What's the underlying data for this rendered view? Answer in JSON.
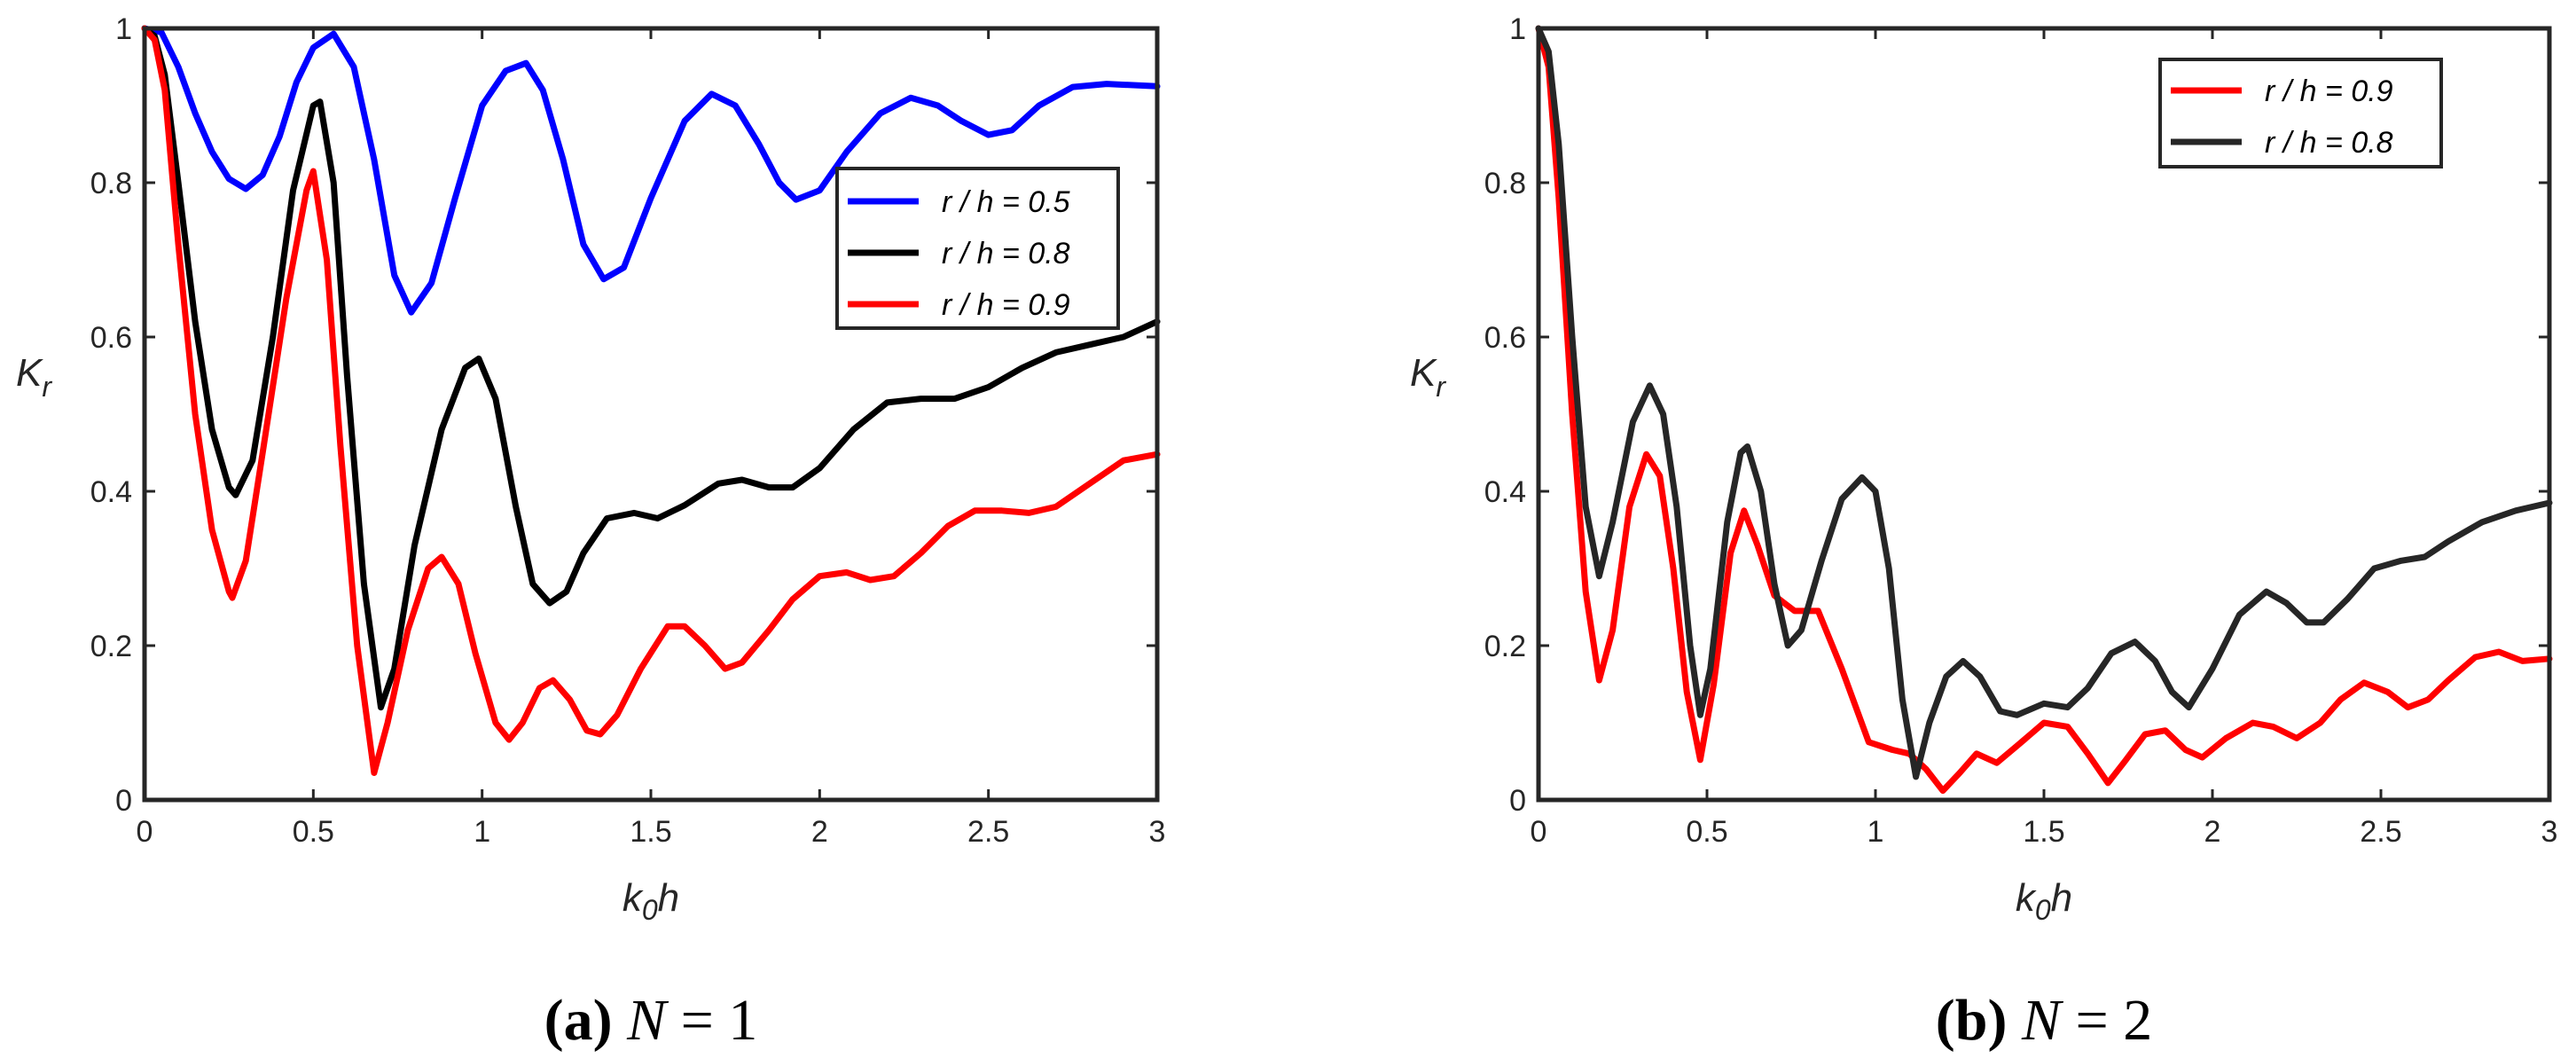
{
  "chart_data": [
    {
      "type": "line",
      "panel": "a",
      "caption_label": "(a)",
      "caption_var": "N",
      "caption_value": "= 1",
      "xlabel": "k",
      "xlabel_sub": "0",
      "xlabel_tail": "h",
      "ylabel": "K",
      "ylabel_sub": "r",
      "xlim": [
        0,
        3
      ],
      "ylim": [
        0,
        1
      ],
      "xticks": [
        "0",
        "0.5",
        "1",
        "1.5",
        "2",
        "2.5",
        "3"
      ],
      "yticks": [
        "0",
        "0.2",
        "0.4",
        "0.6",
        "0.8",
        "1"
      ],
      "legend_position": "right",
      "series": [
        {
          "name": "r / h = 0.5",
          "color": "#0000ff",
          "points": [
            [
              0,
              1
            ],
            [
              0.05,
              0.995
            ],
            [
              0.1,
              0.95
            ],
            [
              0.15,
              0.89
            ],
            [
              0.2,
              0.84
            ],
            [
              0.25,
              0.805
            ],
            [
              0.3,
              0.792
            ],
            [
              0.35,
              0.81
            ],
            [
              0.4,
              0.86
            ],
            [
              0.45,
              0.93
            ],
            [
              0.5,
              0.975
            ],
            [
              0.56,
              0.993
            ],
            [
              0.62,
              0.95
            ],
            [
              0.68,
              0.83
            ],
            [
              0.74,
              0.68
            ],
            [
              0.79,
              0.632
            ],
            [
              0.85,
              0.67
            ],
            [
              0.92,
              0.78
            ],
            [
              1.0,
              0.9
            ],
            [
              1.07,
              0.945
            ],
            [
              1.13,
              0.955
            ],
            [
              1.18,
              0.92
            ],
            [
              1.24,
              0.83
            ],
            [
              1.3,
              0.72
            ],
            [
              1.36,
              0.675
            ],
            [
              1.42,
              0.69
            ],
            [
              1.5,
              0.78
            ],
            [
              1.6,
              0.88
            ],
            [
              1.68,
              0.915
            ],
            [
              1.75,
              0.9
            ],
            [
              1.82,
              0.85
            ],
            [
              1.88,
              0.8
            ],
            [
              1.93,
              0.778
            ],
            [
              2.0,
              0.79
            ],
            [
              2.08,
              0.84
            ],
            [
              2.18,
              0.89
            ],
            [
              2.27,
              0.91
            ],
            [
              2.35,
              0.9
            ],
            [
              2.42,
              0.88
            ],
            [
              2.5,
              0.862
            ],
            [
              2.57,
              0.868
            ],
            [
              2.65,
              0.9
            ],
            [
              2.75,
              0.924
            ],
            [
              2.85,
              0.928
            ],
            [
              3.0,
              0.925
            ]
          ]
        },
        {
          "name": "r / h = 0.8",
          "color": "#000000",
          "points": [
            [
              0,
              1
            ],
            [
              0.03,
              0.99
            ],
            [
              0.06,
              0.94
            ],
            [
              0.1,
              0.8
            ],
            [
              0.15,
              0.62
            ],
            [
              0.2,
              0.48
            ],
            [
              0.25,
              0.405
            ],
            [
              0.27,
              0.395
            ],
            [
              0.32,
              0.44
            ],
            [
              0.38,
              0.6
            ],
            [
              0.44,
              0.79
            ],
            [
              0.5,
              0.9
            ],
            [
              0.52,
              0.905
            ],
            [
              0.56,
              0.8
            ],
            [
              0.6,
              0.55
            ],
            [
              0.65,
              0.28
            ],
            [
              0.7,
              0.12
            ],
            [
              0.74,
              0.17
            ],
            [
              0.8,
              0.33
            ],
            [
              0.88,
              0.48
            ],
            [
              0.95,
              0.56
            ],
            [
              0.99,
              0.572
            ],
            [
              1.04,
              0.52
            ],
            [
              1.1,
              0.38
            ],
            [
              1.15,
              0.28
            ],
            [
              1.2,
              0.255
            ],
            [
              1.25,
              0.27
            ],
            [
              1.3,
              0.32
            ],
            [
              1.37,
              0.365
            ],
            [
              1.45,
              0.372
            ],
            [
              1.52,
              0.365
            ],
            [
              1.6,
              0.382
            ],
            [
              1.7,
              0.41
            ],
            [
              1.77,
              0.415
            ],
            [
              1.85,
              0.405
            ],
            [
              1.92,
              0.405
            ],
            [
              2.0,
              0.43
            ],
            [
              2.1,
              0.48
            ],
            [
              2.2,
              0.515
            ],
            [
              2.3,
              0.52
            ],
            [
              2.4,
              0.52
            ],
            [
              2.5,
              0.535
            ],
            [
              2.6,
              0.56
            ],
            [
              2.7,
              0.58
            ],
            [
              2.8,
              0.59
            ],
            [
              2.9,
              0.6
            ],
            [
              3.0,
              0.62
            ]
          ]
        },
        {
          "name": "r / h = 0.9",
          "color": "#ff0000",
          "points": [
            [
              0,
              1
            ],
            [
              0.03,
              0.985
            ],
            [
              0.06,
              0.92
            ],
            [
              0.1,
              0.72
            ],
            [
              0.15,
              0.5
            ],
            [
              0.2,
              0.35
            ],
            [
              0.25,
              0.27
            ],
            [
              0.26,
              0.262
            ],
            [
              0.3,
              0.31
            ],
            [
              0.35,
              0.45
            ],
            [
              0.42,
              0.65
            ],
            [
              0.48,
              0.79
            ],
            [
              0.5,
              0.815
            ],
            [
              0.54,
              0.7
            ],
            [
              0.58,
              0.46
            ],
            [
              0.63,
              0.2
            ],
            [
              0.68,
              0.035
            ],
            [
              0.72,
              0.1
            ],
            [
              0.78,
              0.22
            ],
            [
              0.84,
              0.3
            ],
            [
              0.88,
              0.315
            ],
            [
              0.93,
              0.28
            ],
            [
              0.98,
              0.19
            ],
            [
              1.04,
              0.1
            ],
            [
              1.08,
              0.078
            ],
            [
              1.12,
              0.1
            ],
            [
              1.17,
              0.145
            ],
            [
              1.21,
              0.155
            ],
            [
              1.26,
              0.13
            ],
            [
              1.31,
              0.09
            ],
            [
              1.35,
              0.085
            ],
            [
              1.4,
              0.11
            ],
            [
              1.47,
              0.17
            ],
            [
              1.55,
              0.225
            ],
            [
              1.6,
              0.225
            ],
            [
              1.66,
              0.2
            ],
            [
              1.72,
              0.17
            ],
            [
              1.77,
              0.178
            ],
            [
              1.85,
              0.22
            ],
            [
              1.92,
              0.26
            ],
            [
              2.0,
              0.29
            ],
            [
              2.08,
              0.295
            ],
            [
              2.15,
              0.285
            ],
            [
              2.22,
              0.29
            ],
            [
              2.3,
              0.32
            ],
            [
              2.38,
              0.355
            ],
            [
              2.46,
              0.375
            ],
            [
              2.54,
              0.375
            ],
            [
              2.62,
              0.372
            ],
            [
              2.7,
              0.38
            ],
            [
              2.8,
              0.41
            ],
            [
              2.9,
              0.44
            ],
            [
              3.0,
              0.448
            ]
          ]
        }
      ]
    },
    {
      "type": "line",
      "panel": "b",
      "caption_label": "(b)",
      "caption_var": "N",
      "caption_value": "= 2",
      "xlabel": "k",
      "xlabel_sub": "0",
      "xlabel_tail": "h",
      "ylabel": "K",
      "ylabel_sub": "r",
      "xlim": [
        0,
        3
      ],
      "ylim": [
        0,
        1
      ],
      "xticks": [
        "0",
        "0.5",
        "1",
        "1.5",
        "2",
        "2.5",
        "3"
      ],
      "yticks": [
        "0",
        "0.2",
        "0.4",
        "0.6",
        "0.8",
        "1"
      ],
      "legend_position": "top-right",
      "series": [
        {
          "name": "r / h = 0.9",
          "color": "#ff0000",
          "points": [
            [
              0,
              1
            ],
            [
              0.03,
              0.95
            ],
            [
              0.06,
              0.78
            ],
            [
              0.1,
              0.5
            ],
            [
              0.14,
              0.27
            ],
            [
              0.18,
              0.155
            ],
            [
              0.22,
              0.22
            ],
            [
              0.27,
              0.38
            ],
            [
              0.32,
              0.448
            ],
            [
              0.36,
              0.42
            ],
            [
              0.4,
              0.3
            ],
            [
              0.44,
              0.14
            ],
            [
              0.48,
              0.052
            ],
            [
              0.52,
              0.15
            ],
            [
              0.57,
              0.32
            ],
            [
              0.61,
              0.375
            ],
            [
              0.65,
              0.33
            ],
            [
              0.7,
              0.265
            ],
            [
              0.76,
              0.245
            ],
            [
              0.83,
              0.245
            ],
            [
              0.9,
              0.17
            ],
            [
              0.98,
              0.075
            ],
            [
              1.05,
              0.065
            ],
            [
              1.1,
              0.06
            ],
            [
              1.15,
              0.04
            ],
            [
              1.2,
              0.012
            ],
            [
              1.25,
              0.035
            ],
            [
              1.3,
              0.06
            ],
            [
              1.36,
              0.048
            ],
            [
              1.42,
              0.07
            ],
            [
              1.5,
              0.1
            ],
            [
              1.57,
              0.095
            ],
            [
              1.63,
              0.06
            ],
            [
              1.69,
              0.022
            ],
            [
              1.74,
              0.05
            ],
            [
              1.8,
              0.085
            ],
            [
              1.86,
              0.09
            ],
            [
              1.92,
              0.065
            ],
            [
              1.97,
              0.055
            ],
            [
              2.04,
              0.08
            ],
            [
              2.12,
              0.1
            ],
            [
              2.18,
              0.095
            ],
            [
              2.25,
              0.08
            ],
            [
              2.32,
              0.1
            ],
            [
              2.38,
              0.13
            ],
            [
              2.45,
              0.152
            ],
            [
              2.52,
              0.14
            ],
            [
              2.58,
              0.12
            ],
            [
              2.64,
              0.13
            ],
            [
              2.7,
              0.155
            ],
            [
              2.78,
              0.185
            ],
            [
              2.85,
              0.192
            ],
            [
              2.92,
              0.18
            ],
            [
              3.0,
              0.183
            ]
          ]
        },
        {
          "name": "r / h = 0.8",
          "color": "#262626",
          "points": [
            [
              0,
              1
            ],
            [
              0.03,
              0.97
            ],
            [
              0.06,
              0.85
            ],
            [
              0.1,
              0.6
            ],
            [
              0.14,
              0.38
            ],
            [
              0.18,
              0.29
            ],
            [
              0.22,
              0.36
            ],
            [
              0.28,
              0.49
            ],
            [
              0.33,
              0.537
            ],
            [
              0.37,
              0.5
            ],
            [
              0.41,
              0.38
            ],
            [
              0.45,
              0.2
            ],
            [
              0.48,
              0.11
            ],
            [
              0.51,
              0.17
            ],
            [
              0.56,
              0.36
            ],
            [
              0.6,
              0.45
            ],
            [
              0.62,
              0.458
            ],
            [
              0.66,
              0.4
            ],
            [
              0.7,
              0.28
            ],
            [
              0.74,
              0.2
            ],
            [
              0.78,
              0.22
            ],
            [
              0.84,
              0.31
            ],
            [
              0.9,
              0.39
            ],
            [
              0.96,
              0.418
            ],
            [
              1.0,
              0.4
            ],
            [
              1.04,
              0.3
            ],
            [
              1.08,
              0.13
            ],
            [
              1.12,
              0.03
            ],
            [
              1.16,
              0.1
            ],
            [
              1.21,
              0.16
            ],
            [
              1.26,
              0.18
            ],
            [
              1.31,
              0.16
            ],
            [
              1.37,
              0.115
            ],
            [
              1.42,
              0.11
            ],
            [
              1.5,
              0.125
            ],
            [
              1.57,
              0.12
            ],
            [
              1.63,
              0.145
            ],
            [
              1.7,
              0.19
            ],
            [
              1.77,
              0.205
            ],
            [
              1.83,
              0.18
            ],
            [
              1.88,
              0.14
            ],
            [
              1.93,
              0.12
            ],
            [
              2.0,
              0.17
            ],
            [
              2.08,
              0.24
            ],
            [
              2.16,
              0.27
            ],
            [
              2.22,
              0.255
            ],
            [
              2.28,
              0.23
            ],
            [
              2.33,
              0.23
            ],
            [
              2.4,
              0.26
            ],
            [
              2.48,
              0.3
            ],
            [
              2.56,
              0.31
            ],
            [
              2.63,
              0.315
            ],
            [
              2.7,
              0.335
            ],
            [
              2.8,
              0.36
            ],
            [
              2.9,
              0.375
            ],
            [
              3.0,
              0.385
            ]
          ]
        }
      ]
    }
  ]
}
